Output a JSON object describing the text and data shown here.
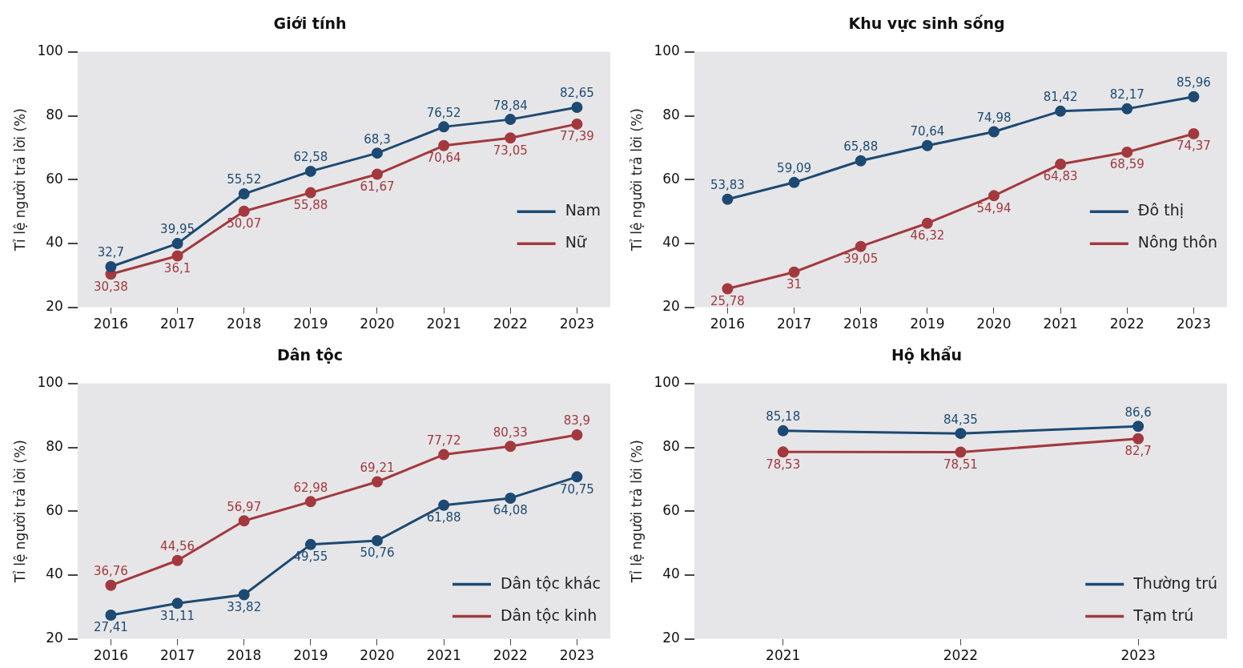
{
  "chart_data": [
    {
      "type": "line",
      "title": "Giới tính",
      "ylabel": "Tỉ lệ người trả lời (%)",
      "categories": [
        "2016",
        "2017",
        "2018",
        "2019",
        "2020",
        "2021",
        "2022",
        "2023"
      ],
      "ylim": [
        20,
        100
      ],
      "yticks": [
        20,
        40,
        60,
        80,
        100
      ],
      "grid": false,
      "legend": "right",
      "marker": "circle",
      "line_style": "solid",
      "series": [
        {
          "name": "Nam",
          "color": "#1d4a73",
          "values": [
            32.7,
            39.95,
            55.52,
            62.58,
            68.3,
            76.52,
            78.84,
            82.65
          ],
          "value_labels": [
            "32,7",
            "39,95",
            "55,52",
            "62,58",
            "68,3",
            "76,52",
            "78,84",
            "82,65"
          ]
        },
        {
          "name": "Nữ",
          "color": "#a3393e",
          "values": [
            30.38,
            36.1,
            50.07,
            55.88,
            61.67,
            70.64,
            73.05,
            77.39
          ],
          "value_labels": [
            "30,38",
            "36,1",
            "50,07",
            "55,88",
            "61,67",
            "70,64",
            "73,05",
            "77,39"
          ]
        }
      ]
    },
    {
      "type": "line",
      "title": "Khu vực sinh sống",
      "ylabel": "Tỉ lệ người trả lời (%)",
      "categories": [
        "2016",
        "2017",
        "2018",
        "2019",
        "2020",
        "2021",
        "2022",
        "2023"
      ],
      "ylim": [
        20,
        100
      ],
      "yticks": [
        20,
        40,
        60,
        80,
        100
      ],
      "grid": false,
      "legend": "right",
      "marker": "circle",
      "line_style": "solid",
      "series": [
        {
          "name": "Đô thị",
          "color": "#1d4a73",
          "values": [
            53.83,
            59.09,
            65.88,
            70.64,
            74.98,
            81.42,
            82.17,
            85.96
          ],
          "value_labels": [
            "53,83",
            "59,09",
            "65,88",
            "70,64",
            "74,98",
            "81,42",
            "82,17",
            "85,96"
          ]
        },
        {
          "name": "Nông thôn",
          "color": "#a3393e",
          "values": [
            25.78,
            31,
            39.05,
            46.32,
            54.94,
            64.83,
            68.59,
            74.37
          ],
          "value_labels": [
            "25,78",
            "31",
            "39,05",
            "46,32",
            "54,94",
            "64,83",
            "68,59",
            "74,37"
          ]
        }
      ]
    },
    {
      "type": "line",
      "title": "Dân tộc",
      "ylabel": "Tỉ lệ người trả lời (%)",
      "categories": [
        "2016",
        "2017",
        "2018",
        "2019",
        "2020",
        "2021",
        "2022",
        "2023"
      ],
      "ylim": [
        20,
        100
      ],
      "yticks": [
        20,
        40,
        60,
        80,
        100
      ],
      "grid": false,
      "legend": "bottom right",
      "marker": "circle",
      "line_style": "solid",
      "series": [
        {
          "name": "Dân tộc khác",
          "color": "#1d4a73",
          "values": [
            27.41,
            31.11,
            33.82,
            49.55,
            50.76,
            61.88,
            64.08,
            70.75
          ],
          "value_labels": [
            "27,41",
            "31,11",
            "33,82",
            "49,55",
            "50,76",
            "61,88",
            "64,08",
            "70,75"
          ]
        },
        {
          "name": "Dân tộc kinh",
          "color": "#a3393e",
          "values": [
            36.76,
            44.56,
            56.97,
            62.98,
            69.21,
            77.72,
            80.33,
            83.9
          ],
          "value_labels": [
            "36,76",
            "44,56",
            "56,97",
            "62,98",
            "69,21",
            "77,72",
            "80,33",
            "83,9"
          ]
        }
      ]
    },
    {
      "type": "line",
      "title": "Hộ khẩu",
      "ylabel": "Tỉ lệ người trả lời (%)",
      "categories": [
        "2021",
        "2022",
        "2023"
      ],
      "ylim": [
        20,
        100
      ],
      "yticks": [
        20,
        40,
        60,
        80,
        100
      ],
      "grid": false,
      "legend": "bottom right",
      "marker": "circle",
      "line_style": "solid",
      "series": [
        {
          "name": "Thường trú",
          "color": "#1d4a73",
          "values": [
            85.18,
            84.35,
            86.6
          ],
          "value_labels": [
            "85,18",
            "84,35",
            "86,6"
          ]
        },
        {
          "name": "Tạm trú",
          "color": "#a3393e",
          "values": [
            78.53,
            78.51,
            82.7
          ],
          "value_labels": [
            "78,53",
            "78,51",
            "82,7"
          ]
        }
      ]
    }
  ]
}
